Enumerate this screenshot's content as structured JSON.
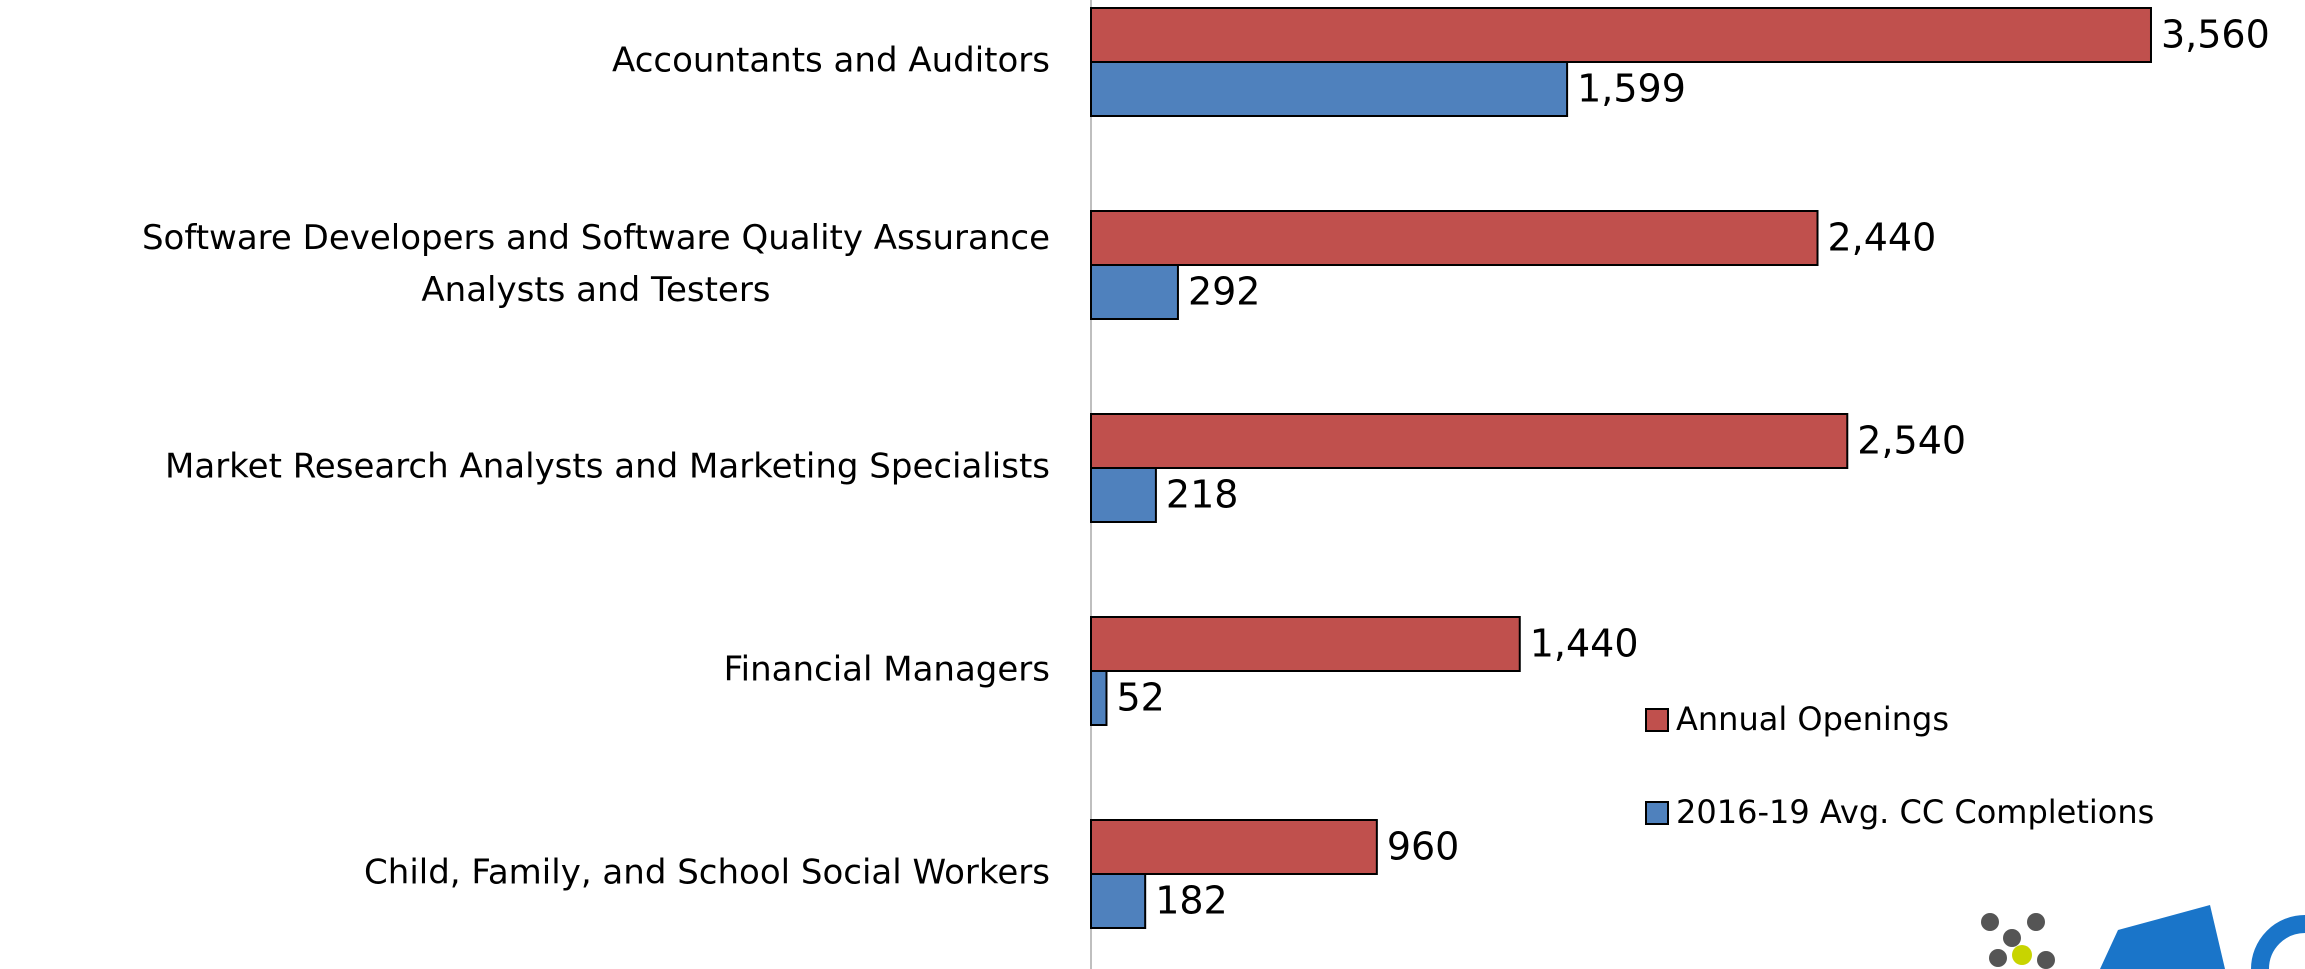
{
  "chart_data": {
    "type": "barh",
    "categories": [
      "Accountants and Auditors",
      "Software Developers and Software Quality Assurance Analysts and Testers",
      "Market Research Analysts and Marketing Specialists",
      "Financial Managers",
      "Child, Family, and School Social Workers"
    ],
    "series": [
      {
        "name": "Annual Openings",
        "color": "#c0504d",
        "values": [
          3560,
          2440,
          2540,
          1440,
          960
        ],
        "value_labels": [
          "3,560",
          "2,440",
          "2,540",
          "1,440",
          "960"
        ]
      },
      {
        "name": "2016-19 Avg. CC Completions",
        "color": "#4f81bd",
        "values": [
          1599,
          292,
          218,
          52,
          182
        ],
        "value_labels": [
          "1,599",
          "292",
          "218",
          "52",
          "182"
        ]
      }
    ],
    "xlim": [
      0,
      4000
    ]
  }
}
